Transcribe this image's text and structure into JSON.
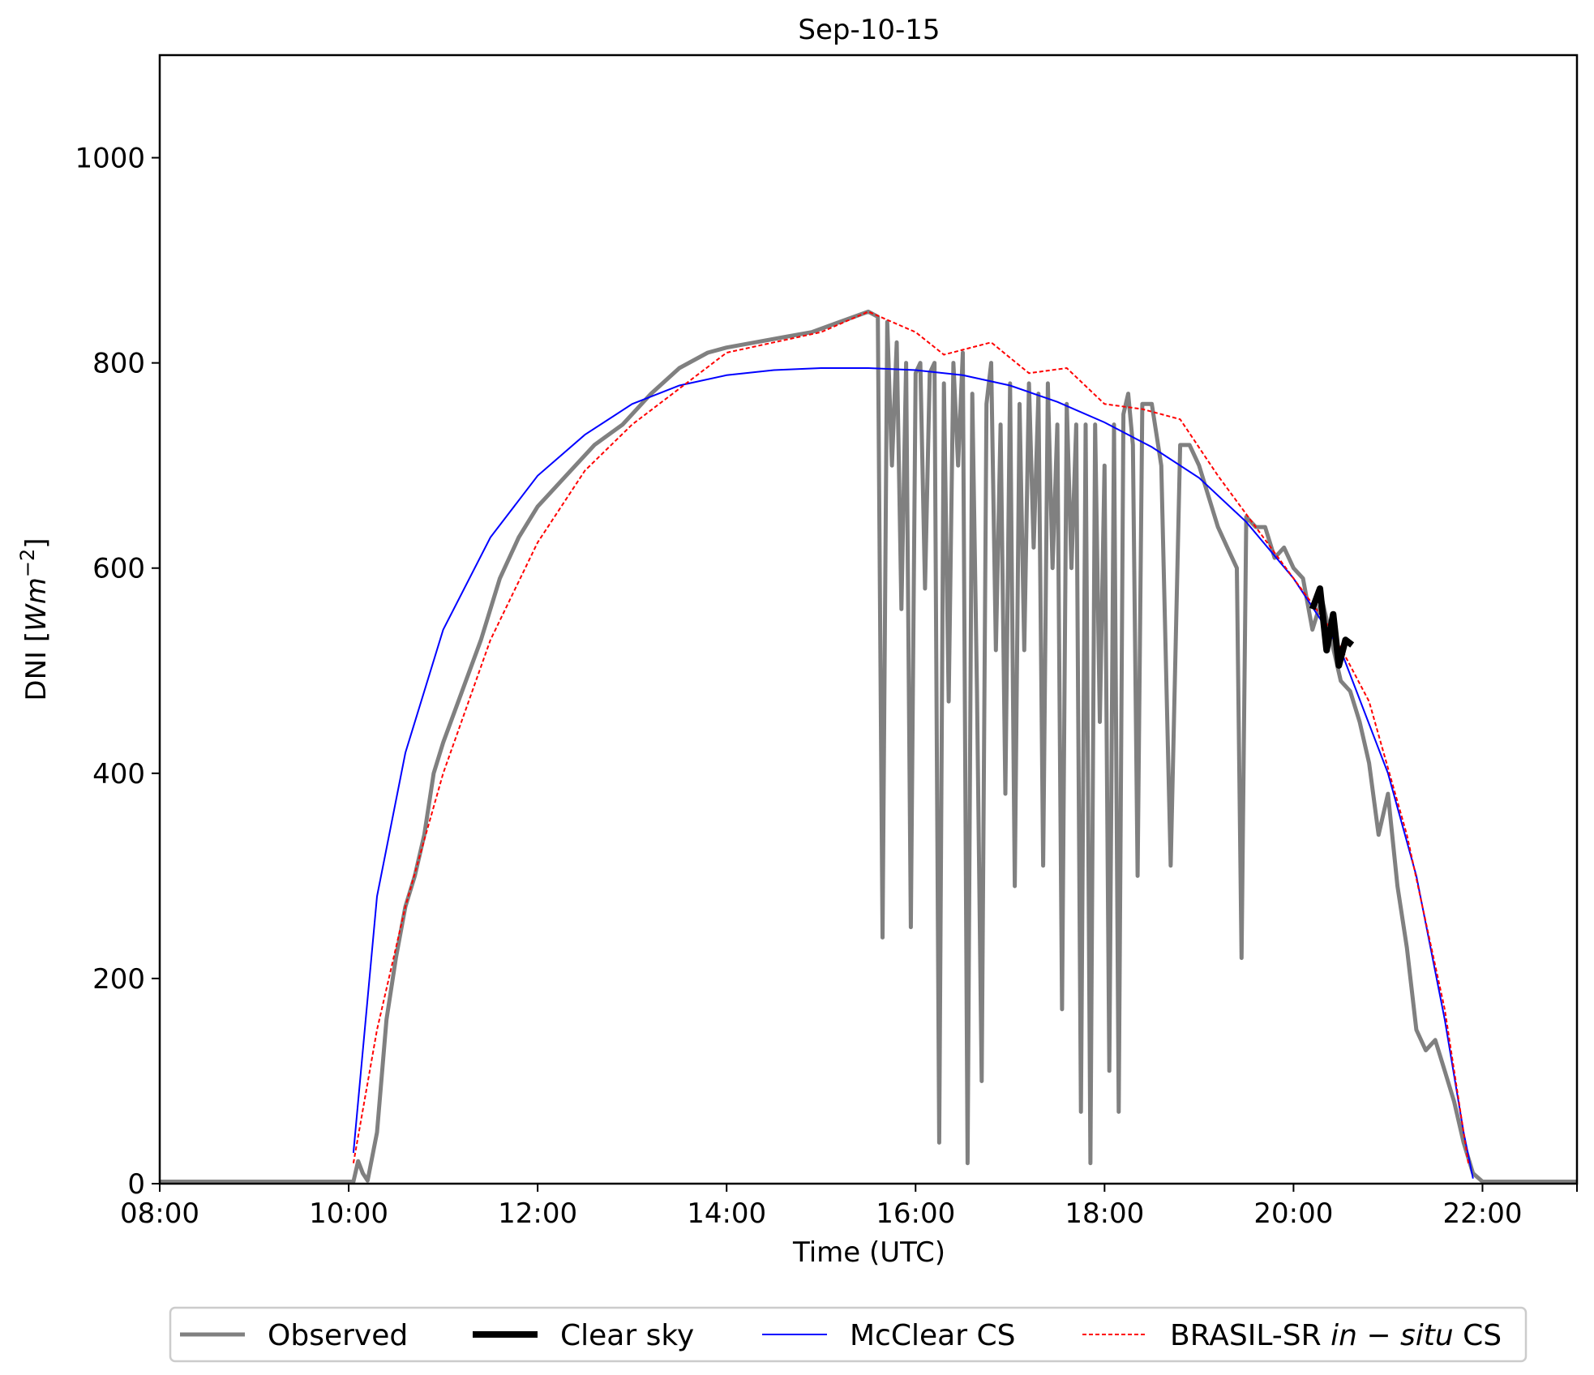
{
  "chart_data": {
    "type": "line",
    "title": "Sep-10-15",
    "xlabel": "Time (UTC)",
    "ylabel_main": "DNI [",
    "ylabel_unit": "Wm",
    "ylabel_exp": "−2",
    "ylabel_close": "]",
    "xlim": [
      8,
      23
    ],
    "ylim": [
      0,
      1100
    ],
    "x_ticks": [
      8,
      10,
      12,
      14,
      16,
      18,
      20,
      22
    ],
    "x_tick_labels": [
      "08:00",
      "10:00",
      "12:00",
      "14:00",
      "16:00",
      "18:00",
      "20:00",
      "22:00"
    ],
    "y_ticks": [
      0,
      200,
      400,
      600,
      800,
      1000
    ],
    "y_tick_labels": [
      "0",
      "200",
      "400",
      "600",
      "800",
      "1000"
    ],
    "legend_position": "bottom-outside",
    "legend": {
      "observed": "Observed",
      "clear_sky": "Clear sky",
      "mcclear": "McClear CS",
      "brasil_prefix": "BRASIL-SR ",
      "brasil_italic": "in − situ",
      "brasil_suffix": " CS"
    },
    "series": {
      "observed": {
        "color": "#808080",
        "x": [
          8.0,
          9.9,
          10.05,
          10.1,
          10.15,
          10.2,
          10.3,
          10.4,
          10.5,
          10.6,
          10.7,
          10.8,
          10.9,
          11.0,
          11.2,
          11.4,
          11.6,
          11.8,
          12.0,
          12.3,
          12.6,
          12.9,
          13.2,
          13.5,
          13.8,
          14.0,
          14.3,
          14.6,
          14.9,
          15.2,
          15.5,
          15.6,
          15.65,
          15.7,
          15.75,
          15.8,
          15.85,
          15.9,
          15.95,
          16.0,
          16.05,
          16.1,
          16.15,
          16.2,
          16.25,
          16.3,
          16.35,
          16.4,
          16.45,
          16.5,
          16.55,
          16.6,
          16.65,
          16.7,
          16.75,
          16.8,
          16.85,
          16.9,
          16.95,
          17.0,
          17.05,
          17.1,
          17.15,
          17.2,
          17.25,
          17.3,
          17.35,
          17.4,
          17.45,
          17.5,
          17.55,
          17.6,
          17.65,
          17.7,
          17.75,
          17.8,
          17.85,
          17.9,
          17.95,
          18.0,
          18.05,
          18.1,
          18.15,
          18.2,
          18.25,
          18.3,
          18.35,
          18.4,
          18.5,
          18.6,
          18.7,
          18.8,
          18.9,
          19.0,
          19.1,
          19.2,
          19.3,
          19.4,
          19.45,
          19.5,
          19.6,
          19.7,
          19.8,
          19.9,
          20.0,
          20.1,
          20.2,
          20.3,
          20.4,
          20.5,
          20.6,
          20.7,
          20.8,
          20.9,
          21.0,
          21.1,
          21.2,
          21.3,
          21.4,
          21.5,
          21.6,
          21.7,
          21.8,
          21.9,
          22.0,
          23.0
        ],
        "y": [
          2,
          2,
          2,
          22,
          10,
          3,
          50,
          160,
          220,
          270,
          300,
          340,
          400,
          430,
          480,
          530,
          590,
          630,
          660,
          690,
          720,
          740,
          770,
          795,
          810,
          815,
          820,
          825,
          830,
          840,
          850,
          845,
          240,
          840,
          700,
          820,
          560,
          800,
          250,
          790,
          800,
          580,
          790,
          800,
          40,
          780,
          470,
          800,
          700,
          810,
          20,
          770,
          480,
          100,
          760,
          800,
          520,
          740,
          380,
          780,
          290,
          760,
          520,
          780,
          620,
          770,
          310,
          780,
          600,
          740,
          170,
          760,
          600,
          740,
          70,
          740,
          20,
          740,
          450,
          700,
          110,
          740,
          70,
          750,
          770,
          720,
          300,
          760,
          760,
          700,
          310,
          720,
          720,
          700,
          670,
          640,
          620,
          600,
          220,
          650,
          640,
          640,
          610,
          620,
          600,
          590,
          540,
          570,
          530,
          490,
          480,
          450,
          410,
          340,
          380,
          290,
          230,
          150,
          130,
          140,
          110,
          80,
          40,
          10,
          2,
          2
        ]
      },
      "clear_sky": {
        "color": "#000000",
        "x": [
          20.2,
          20.28,
          20.35,
          20.42,
          20.48,
          20.55,
          20.62
        ],
        "y": [
          560,
          580,
          520,
          555,
          505,
          530,
          525
        ]
      },
      "mcclear": {
        "color": "#0000ff",
        "x": [
          10.05,
          10.3,
          10.6,
          11.0,
          11.5,
          12.0,
          12.5,
          13.0,
          13.5,
          14.0,
          14.5,
          15.0,
          15.5,
          16.0,
          16.5,
          17.0,
          17.5,
          18.0,
          18.5,
          19.0,
          19.5,
          20.0,
          20.5,
          21.0,
          21.3,
          21.6,
          21.8,
          21.9
        ],
        "y": [
          30,
          280,
          420,
          540,
          630,
          690,
          730,
          760,
          778,
          788,
          793,
          795,
          795,
          793,
          788,
          778,
          762,
          742,
          718,
          688,
          645,
          590,
          520,
          400,
          300,
          160,
          50,
          5
        ]
      },
      "brasil": {
        "color": "#ff0000",
        "x": [
          10.05,
          10.3,
          10.6,
          11.0,
          11.5,
          12.0,
          12.5,
          13.0,
          13.5,
          14.0,
          14.5,
          15.0,
          15.5,
          16.0,
          16.3,
          16.8,
          17.2,
          17.6,
          18.0,
          18.4,
          18.8,
          19.2,
          19.6,
          20.0,
          20.4,
          20.8,
          21.2,
          21.6,
          21.85
        ],
        "y": [
          20,
          150,
          270,
          400,
          530,
          625,
          695,
          740,
          775,
          810,
          820,
          830,
          850,
          830,
          808,
          820,
          790,
          795,
          760,
          755,
          745,
          690,
          640,
          590,
          540,
          470,
          340,
          170,
          20
        ]
      }
    }
  }
}
